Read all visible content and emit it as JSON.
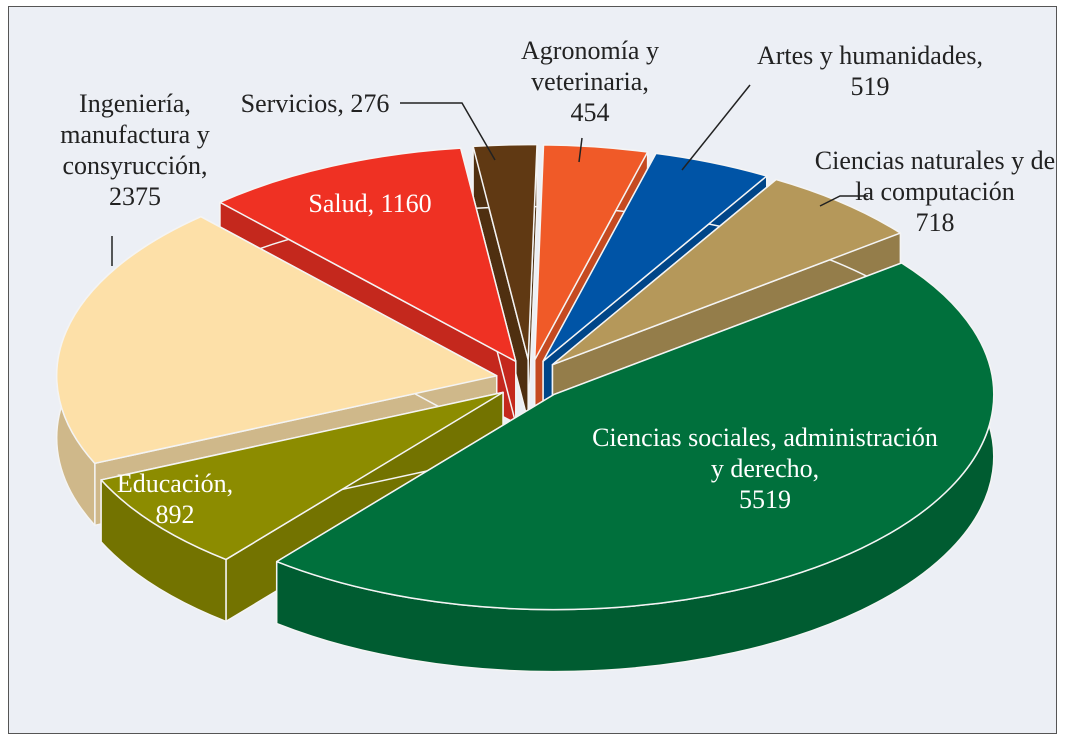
{
  "chart_data": {
    "type": "pie",
    "categories": [
      "Agronomía y veterinaria,",
      "Artes y humanidades,",
      "Ciencias naturales y de la computación",
      "Ciencias sociales, administración y derecho,",
      "Educación,",
      "Ingeniería, manufactura y consyrucción,",
      "Salud,",
      "Servicios,"
    ],
    "values": [
      454,
      519,
      718,
      5519,
      892,
      2375,
      1160,
      276
    ],
    "colors": [
      "#f05a28",
      "#0054a6",
      "#b5985a",
      "#00703c",
      "#8c8c00",
      "#fde0a8",
      "#ef3123",
      "#603913"
    ]
  }
}
